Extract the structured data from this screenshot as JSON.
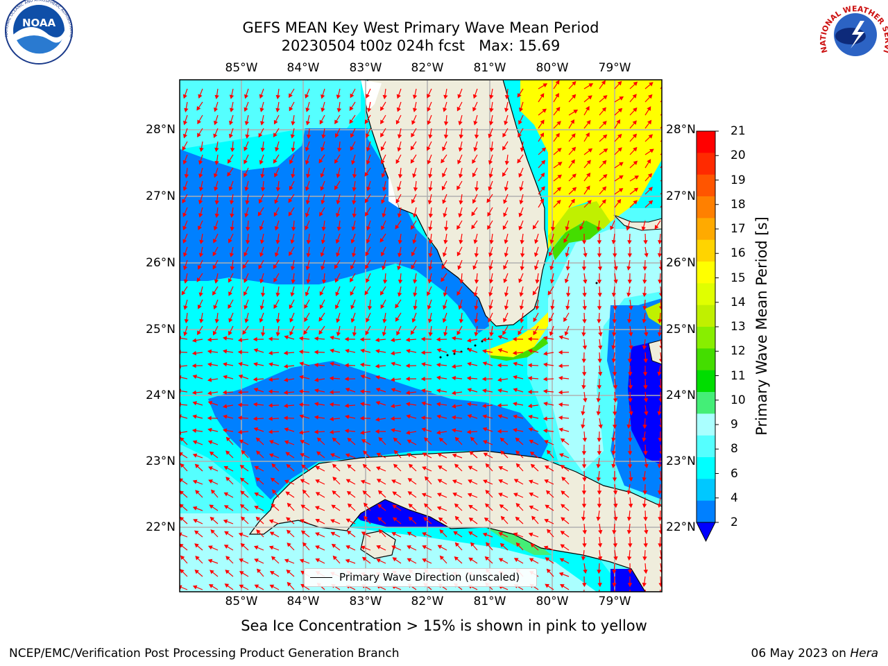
{
  "header": {
    "title_line1": "GEFS MEAN Key West Primary Wave Mean Period",
    "title_line2": "20230504 t00z 024h fcst   Max: 15.69"
  },
  "map": {
    "lon_labels": [
      "85°W",
      "84°W",
      "83°W",
      "82°W",
      "81°W",
      "80°W",
      "79°W"
    ],
    "lat_labels": [
      "28°N",
      "27°N",
      "26°N",
      "25°N",
      "24°N",
      "23°N",
      "22°N"
    ],
    "legend_label": "Primary Wave Direction (unscaled)",
    "land_color": "#efeddc",
    "arrow_color": "#ff0000",
    "grid_color": "#b0b0b0"
  },
  "colorbar": {
    "label": "Primary Wave Mean Period [s]",
    "ticks": [
      "21",
      "20",
      "19",
      "18",
      "17",
      "16",
      "15",
      "14",
      "13",
      "12",
      "11",
      "10",
      "9",
      "8",
      "6",
      "4",
      "2"
    ],
    "colors": [
      "#ff0000",
      "#ff2a00",
      "#ff5500",
      "#ff8000",
      "#ffaa00",
      "#ffd400",
      "#ffff00",
      "#e0ff00",
      "#c0f000",
      "#88ee00",
      "#44dd00",
      "#00dd00",
      "#44ee77",
      "#aaffff",
      "#55ffff",
      "#00ffff",
      "#00c8ff",
      "#0080ff",
      "#0000ff"
    ]
  },
  "footer": {
    "note": "Sea Ice Concentration > 15% is shown in pink to yellow",
    "credit_left": "NCEP/EMC/Verification Post Processing Product Generation Branch",
    "credit_date": "06 May 2023 on ",
    "credit_host": "Hera"
  },
  "logos": {
    "noaa_text": "NOAA",
    "noaa_ring_text": "NATIONAL OCEANIC AND ATMOSPHERIC ADMINISTRATION · U.S. DEPARTMENT OF COMMERCE",
    "nws_ring_text": "NATIONAL WEATHER SERVICE"
  }
}
